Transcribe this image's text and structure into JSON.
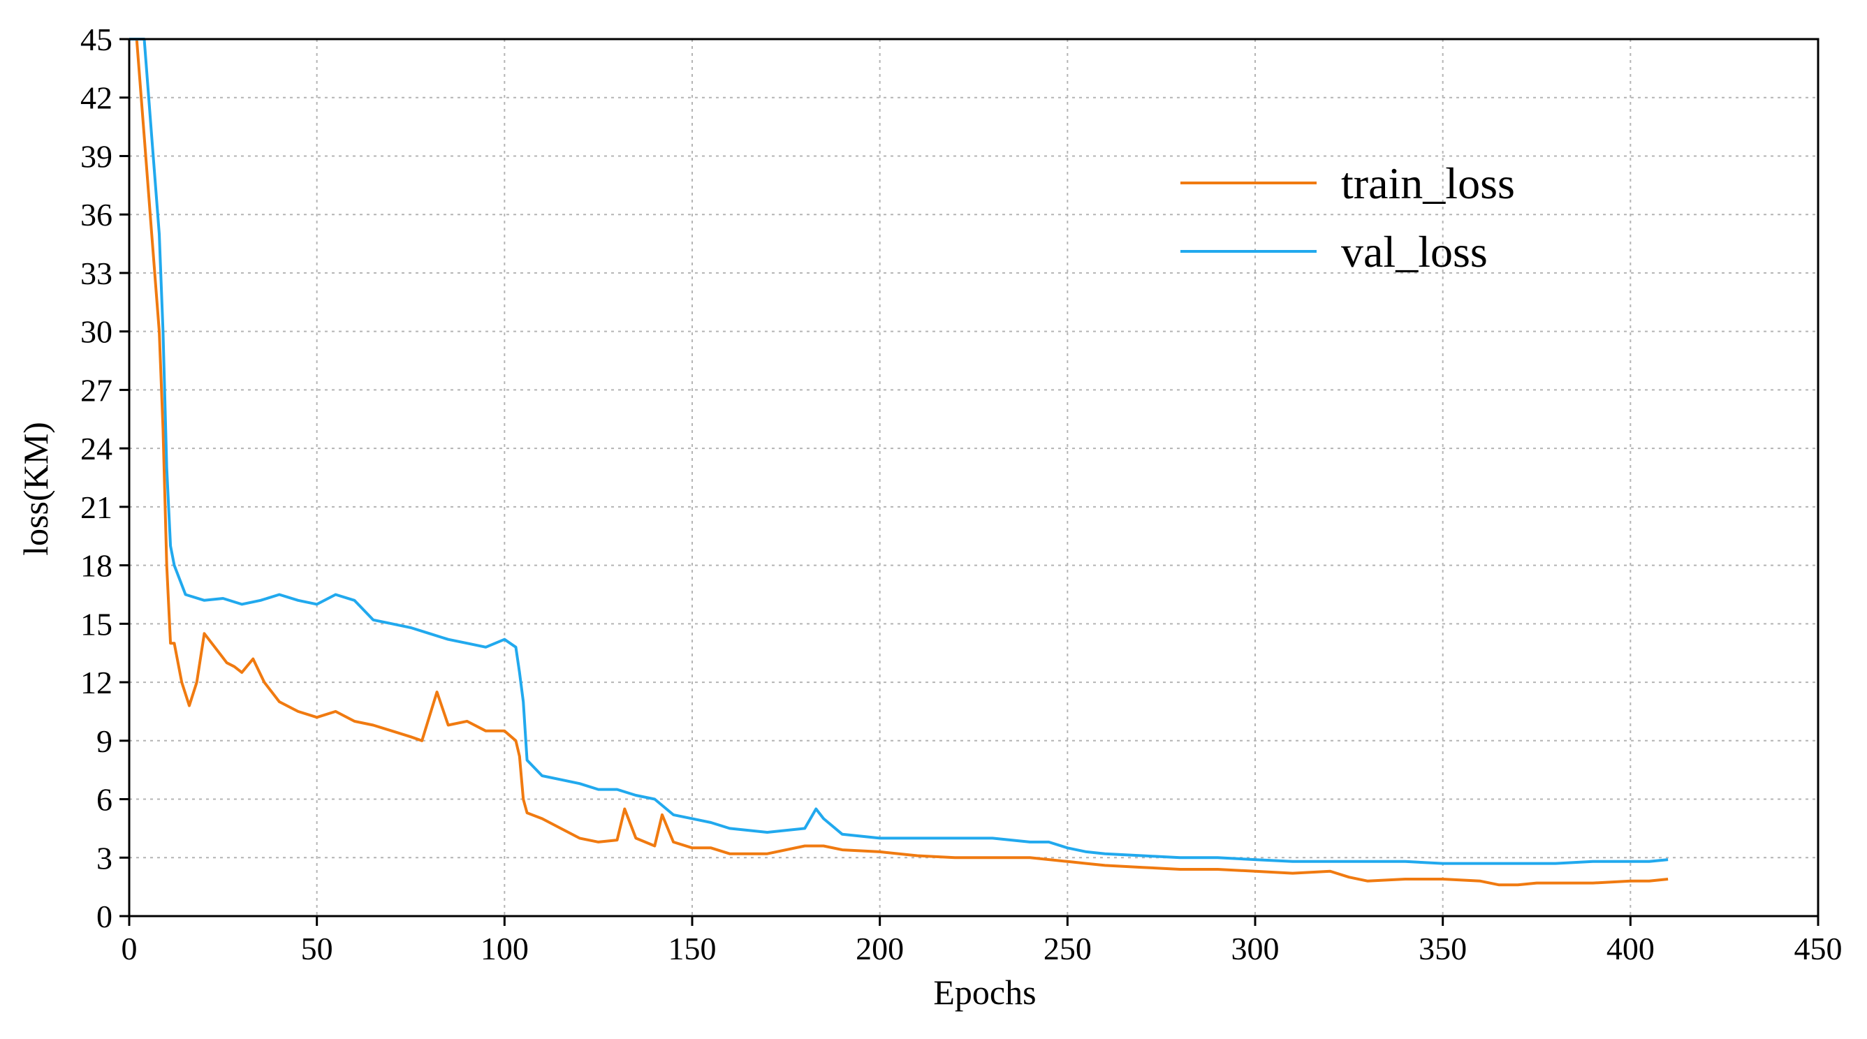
{
  "chart_data": {
    "type": "line",
    "title": "",
    "xlabel": "Epochs",
    "ylabel": "loss(KM)",
    "xlim": [
      0,
      450
    ],
    "ylim": [
      0,
      45
    ],
    "xticks": [
      0,
      50,
      100,
      150,
      200,
      250,
      300,
      350,
      400,
      450
    ],
    "yticks": [
      0,
      3,
      6,
      9,
      12,
      15,
      18,
      21,
      24,
      27,
      30,
      33,
      36,
      39,
      42,
      45
    ],
    "grid": true,
    "legend_position": "top-right",
    "series": [
      {
        "name": "train_loss",
        "color": "#f07a10",
        "x": [
          0,
          2,
          4,
          6,
          8,
          9,
          10,
          11,
          12,
          14,
          16,
          18,
          20,
          22,
          24,
          26,
          28,
          30,
          33,
          36,
          40,
          45,
          50,
          55,
          60,
          65,
          70,
          75,
          78,
          82,
          85,
          90,
          95,
          100,
          103,
          104,
          105,
          106,
          110,
          115,
          120,
          125,
          130,
          132,
          135,
          140,
          142,
          145,
          150,
          155,
          160,
          170,
          180,
          185,
          190,
          200,
          210,
          220,
          230,
          240,
          250,
          255,
          260,
          270,
          280,
          290,
          300,
          310,
          320,
          325,
          330,
          340,
          350,
          360,
          365,
          370,
          375,
          380,
          390,
          400,
          405,
          410
        ],
        "y": [
          45,
          45,
          40,
          35,
          30,
          25,
          18,
          14,
          14,
          12,
          10.8,
          12,
          14.5,
          14,
          13.5,
          13,
          12.8,
          12.5,
          13.2,
          12,
          11,
          10.5,
          10.2,
          10.5,
          10,
          9.8,
          9.5,
          9.2,
          9,
          11.5,
          9.8,
          10,
          9.5,
          9.5,
          9,
          8.2,
          6,
          5.3,
          5,
          4.5,
          4,
          3.8,
          3.9,
          5.5,
          4,
          3.6,
          5.2,
          3.8,
          3.5,
          3.5,
          3.2,
          3.2,
          3.6,
          3.6,
          3.4,
          3.3,
          3.1,
          3,
          3,
          3,
          2.8,
          2.7,
          2.6,
          2.5,
          2.4,
          2.4,
          2.3,
          2.2,
          2.3,
          2,
          1.8,
          1.9,
          1.9,
          1.8,
          1.6,
          1.6,
          1.7,
          1.7,
          1.7,
          1.8,
          1.8,
          1.9
        ]
      },
      {
        "name": "val_loss",
        "color": "#21a9ee",
        "x": [
          0,
          2,
          4,
          6,
          8,
          9,
          10,
          11,
          12,
          15,
          20,
          25,
          30,
          35,
          40,
          45,
          50,
          55,
          60,
          65,
          70,
          75,
          80,
          85,
          90,
          95,
          100,
          103,
          104,
          105,
          106,
          110,
          115,
          120,
          125,
          130,
          135,
          140,
          145,
          150,
          155,
          160,
          170,
          180,
          183,
          185,
          190,
          200,
          210,
          220,
          230,
          240,
          245,
          250,
          255,
          260,
          270,
          280,
          290,
          300,
          310,
          320,
          330,
          340,
          350,
          360,
          370,
          380,
          390,
          400,
          405,
          410
        ],
        "y": [
          45,
          45,
          45,
          40,
          35,
          30,
          23,
          19,
          18,
          16.5,
          16.2,
          16.3,
          16,
          16.2,
          16.5,
          16.2,
          16,
          16.5,
          16.2,
          15.2,
          15,
          14.8,
          14.5,
          14.2,
          14,
          13.8,
          14.2,
          13.8,
          12.5,
          11,
          8,
          7.2,
          7,
          6.8,
          6.5,
          6.5,
          6.2,
          6,
          5.2,
          5,
          4.8,
          4.5,
          4.3,
          4.5,
          5.5,
          5,
          4.2,
          4,
          4,
          4,
          4,
          3.8,
          3.8,
          3.5,
          3.3,
          3.2,
          3.1,
          3,
          3,
          2.9,
          2.8,
          2.8,
          2.8,
          2.8,
          2.7,
          2.7,
          2.7,
          2.7,
          2.8,
          2.8,
          2.8,
          2.9
        ]
      }
    ]
  }
}
